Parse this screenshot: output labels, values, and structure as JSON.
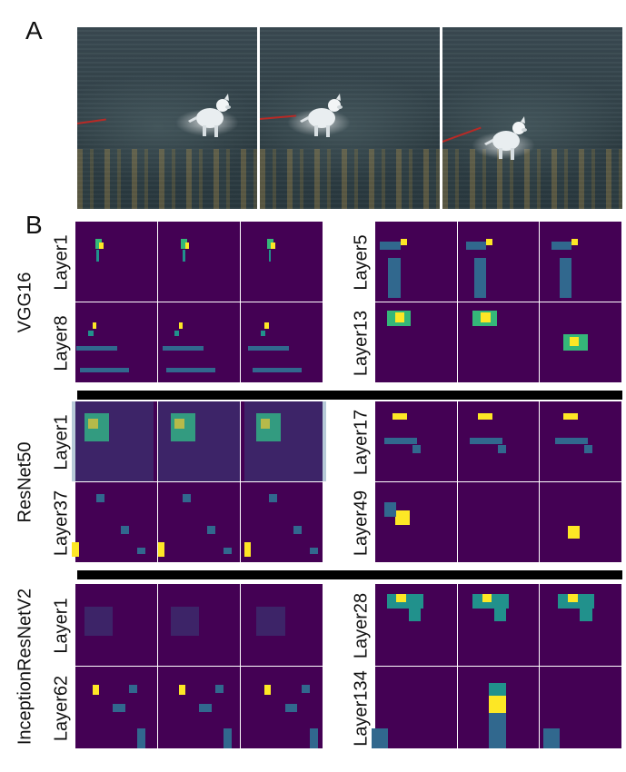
{
  "panels": {
    "a": "A",
    "b": "B"
  },
  "models": [
    {
      "name": "VGG16",
      "layers": [
        "Layer1",
        "Layer8",
        "Layer5",
        "Layer13"
      ]
    },
    {
      "name": "ResNet50",
      "layers": [
        "Layer1",
        "Layer37",
        "Layer17",
        "Layer49"
      ]
    },
    {
      "name": "InceptionResNetV2",
      "layers": [
        "Layer1",
        "Layer62",
        "Layer28",
        "Layer134"
      ]
    }
  ],
  "colors": {
    "viridis_dark": "#440154",
    "viridis_blue": "#31688e",
    "viridis_teal": "#21918c",
    "viridis_green": "#35b779",
    "viridis_yellow": "#fde725",
    "leash": "#b82a26",
    "divider": "#000000"
  }
}
